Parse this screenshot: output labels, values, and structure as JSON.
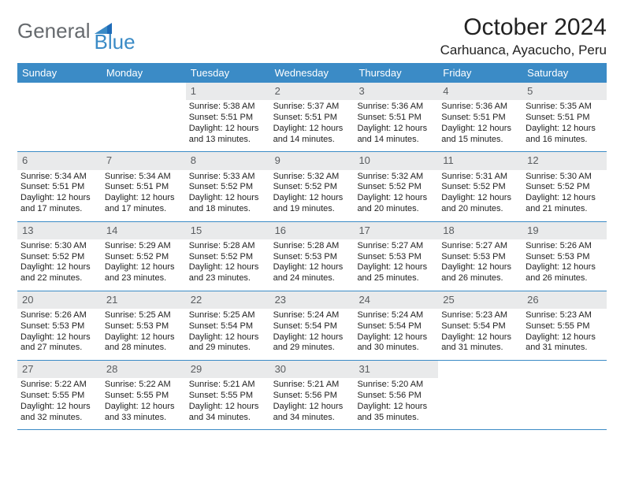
{
  "brand": {
    "part1": "General",
    "part2": "Blue"
  },
  "title": "October 2024",
  "location": "Carhuanca, Ayacucho, Peru",
  "colors": {
    "header_bg": "#3b8bc6",
    "daynum_bg": "#e9eaeb",
    "text": "#222222",
    "logo_gray": "#666a6e",
    "logo_blue": "#3b8bc6",
    "border": "#3b8bc6",
    "page_bg": "#ffffff"
  },
  "typography": {
    "title_fontsize": 30,
    "location_fontsize": 17,
    "dow_fontsize": 13,
    "daynum_fontsize": 13,
    "body_fontsize": 11
  },
  "daysOfWeek": [
    "Sunday",
    "Monday",
    "Tuesday",
    "Wednesday",
    "Thursday",
    "Friday",
    "Saturday"
  ],
  "weeks": [
    [
      {
        "n": "",
        "sr": "",
        "ss": "",
        "dl": ""
      },
      {
        "n": "",
        "sr": "",
        "ss": "",
        "dl": ""
      },
      {
        "n": "1",
        "sr": "Sunrise: 5:38 AM",
        "ss": "Sunset: 5:51 PM",
        "dl": "Daylight: 12 hours and 13 minutes."
      },
      {
        "n": "2",
        "sr": "Sunrise: 5:37 AM",
        "ss": "Sunset: 5:51 PM",
        "dl": "Daylight: 12 hours and 14 minutes."
      },
      {
        "n": "3",
        "sr": "Sunrise: 5:36 AM",
        "ss": "Sunset: 5:51 PM",
        "dl": "Daylight: 12 hours and 14 minutes."
      },
      {
        "n": "4",
        "sr": "Sunrise: 5:36 AM",
        "ss": "Sunset: 5:51 PM",
        "dl": "Daylight: 12 hours and 15 minutes."
      },
      {
        "n": "5",
        "sr": "Sunrise: 5:35 AM",
        "ss": "Sunset: 5:51 PM",
        "dl": "Daylight: 12 hours and 16 minutes."
      }
    ],
    [
      {
        "n": "6",
        "sr": "Sunrise: 5:34 AM",
        "ss": "Sunset: 5:51 PM",
        "dl": "Daylight: 12 hours and 17 minutes."
      },
      {
        "n": "7",
        "sr": "Sunrise: 5:34 AM",
        "ss": "Sunset: 5:51 PM",
        "dl": "Daylight: 12 hours and 17 minutes."
      },
      {
        "n": "8",
        "sr": "Sunrise: 5:33 AM",
        "ss": "Sunset: 5:52 PM",
        "dl": "Daylight: 12 hours and 18 minutes."
      },
      {
        "n": "9",
        "sr": "Sunrise: 5:32 AM",
        "ss": "Sunset: 5:52 PM",
        "dl": "Daylight: 12 hours and 19 minutes."
      },
      {
        "n": "10",
        "sr": "Sunrise: 5:32 AM",
        "ss": "Sunset: 5:52 PM",
        "dl": "Daylight: 12 hours and 20 minutes."
      },
      {
        "n": "11",
        "sr": "Sunrise: 5:31 AM",
        "ss": "Sunset: 5:52 PM",
        "dl": "Daylight: 12 hours and 20 minutes."
      },
      {
        "n": "12",
        "sr": "Sunrise: 5:30 AM",
        "ss": "Sunset: 5:52 PM",
        "dl": "Daylight: 12 hours and 21 minutes."
      }
    ],
    [
      {
        "n": "13",
        "sr": "Sunrise: 5:30 AM",
        "ss": "Sunset: 5:52 PM",
        "dl": "Daylight: 12 hours and 22 minutes."
      },
      {
        "n": "14",
        "sr": "Sunrise: 5:29 AM",
        "ss": "Sunset: 5:52 PM",
        "dl": "Daylight: 12 hours and 23 minutes."
      },
      {
        "n": "15",
        "sr": "Sunrise: 5:28 AM",
        "ss": "Sunset: 5:52 PM",
        "dl": "Daylight: 12 hours and 23 minutes."
      },
      {
        "n": "16",
        "sr": "Sunrise: 5:28 AM",
        "ss": "Sunset: 5:53 PM",
        "dl": "Daylight: 12 hours and 24 minutes."
      },
      {
        "n": "17",
        "sr": "Sunrise: 5:27 AM",
        "ss": "Sunset: 5:53 PM",
        "dl": "Daylight: 12 hours and 25 minutes."
      },
      {
        "n": "18",
        "sr": "Sunrise: 5:27 AM",
        "ss": "Sunset: 5:53 PM",
        "dl": "Daylight: 12 hours and 26 minutes."
      },
      {
        "n": "19",
        "sr": "Sunrise: 5:26 AM",
        "ss": "Sunset: 5:53 PM",
        "dl": "Daylight: 12 hours and 26 minutes."
      }
    ],
    [
      {
        "n": "20",
        "sr": "Sunrise: 5:26 AM",
        "ss": "Sunset: 5:53 PM",
        "dl": "Daylight: 12 hours and 27 minutes."
      },
      {
        "n": "21",
        "sr": "Sunrise: 5:25 AM",
        "ss": "Sunset: 5:53 PM",
        "dl": "Daylight: 12 hours and 28 minutes."
      },
      {
        "n": "22",
        "sr": "Sunrise: 5:25 AM",
        "ss": "Sunset: 5:54 PM",
        "dl": "Daylight: 12 hours and 29 minutes."
      },
      {
        "n": "23",
        "sr": "Sunrise: 5:24 AM",
        "ss": "Sunset: 5:54 PM",
        "dl": "Daylight: 12 hours and 29 minutes."
      },
      {
        "n": "24",
        "sr": "Sunrise: 5:24 AM",
        "ss": "Sunset: 5:54 PM",
        "dl": "Daylight: 12 hours and 30 minutes."
      },
      {
        "n": "25",
        "sr": "Sunrise: 5:23 AM",
        "ss": "Sunset: 5:54 PM",
        "dl": "Daylight: 12 hours and 31 minutes."
      },
      {
        "n": "26",
        "sr": "Sunrise: 5:23 AM",
        "ss": "Sunset: 5:55 PM",
        "dl": "Daylight: 12 hours and 31 minutes."
      }
    ],
    [
      {
        "n": "27",
        "sr": "Sunrise: 5:22 AM",
        "ss": "Sunset: 5:55 PM",
        "dl": "Daylight: 12 hours and 32 minutes."
      },
      {
        "n": "28",
        "sr": "Sunrise: 5:22 AM",
        "ss": "Sunset: 5:55 PM",
        "dl": "Daylight: 12 hours and 33 minutes."
      },
      {
        "n": "29",
        "sr": "Sunrise: 5:21 AM",
        "ss": "Sunset: 5:55 PM",
        "dl": "Daylight: 12 hours and 34 minutes."
      },
      {
        "n": "30",
        "sr": "Sunrise: 5:21 AM",
        "ss": "Sunset: 5:56 PM",
        "dl": "Daylight: 12 hours and 34 minutes."
      },
      {
        "n": "31",
        "sr": "Sunrise: 5:20 AM",
        "ss": "Sunset: 5:56 PM",
        "dl": "Daylight: 12 hours and 35 minutes."
      },
      {
        "n": "",
        "sr": "",
        "ss": "",
        "dl": ""
      },
      {
        "n": "",
        "sr": "",
        "ss": "",
        "dl": ""
      }
    ]
  ]
}
